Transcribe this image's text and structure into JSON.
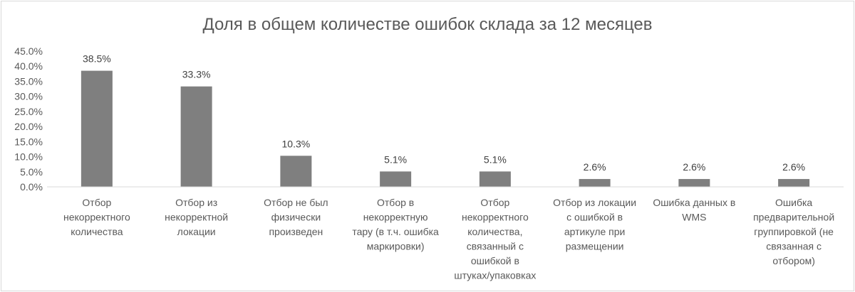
{
  "chart_data": {
    "type": "bar",
    "title": "Доля в общем количестве ошибок склада за 12 месяцев",
    "xlabel": "",
    "ylabel": "",
    "ylim": [
      0,
      45
    ],
    "y_ticks": [
      "0.0%",
      "5.0%",
      "10.0%",
      "15.0%",
      "20.0%",
      "25.0%",
      "30.0%",
      "35.0%",
      "40.0%",
      "45.0%"
    ],
    "grid": false,
    "legend": "none",
    "bar_color": "#7f7f7f",
    "categories": [
      [
        "Отбор",
        "некорректного",
        "количества"
      ],
      [
        "Отбор из",
        "некорректной",
        "локации"
      ],
      [
        "Отбор не был",
        "физически",
        "произведен"
      ],
      [
        "Отбор в",
        "некорректную",
        "тару (в т.ч. ошибка",
        "маркировки)"
      ],
      [
        "Отбор",
        "некорректного",
        "количества,",
        "связанный с",
        "ошибкой в",
        "штуках/упаковках"
      ],
      [
        "Отбор из локации",
        "с ошибкой в",
        "артикуле при",
        "размещении"
      ],
      [
        "Ошибка данных в",
        "WMS"
      ],
      [
        "Ошибка",
        "предварительной",
        "группировкой (не",
        "связанная с",
        "отбором)"
      ]
    ],
    "values": [
      38.5,
      33.3,
      10.3,
      5.1,
      5.1,
      2.6,
      2.6,
      2.6
    ],
    "data_labels": [
      "38.5%",
      "33.3%",
      "10.3%",
      "5.1%",
      "5.1%",
      "2.6%",
      "2.6%",
      "2.6%"
    ]
  }
}
